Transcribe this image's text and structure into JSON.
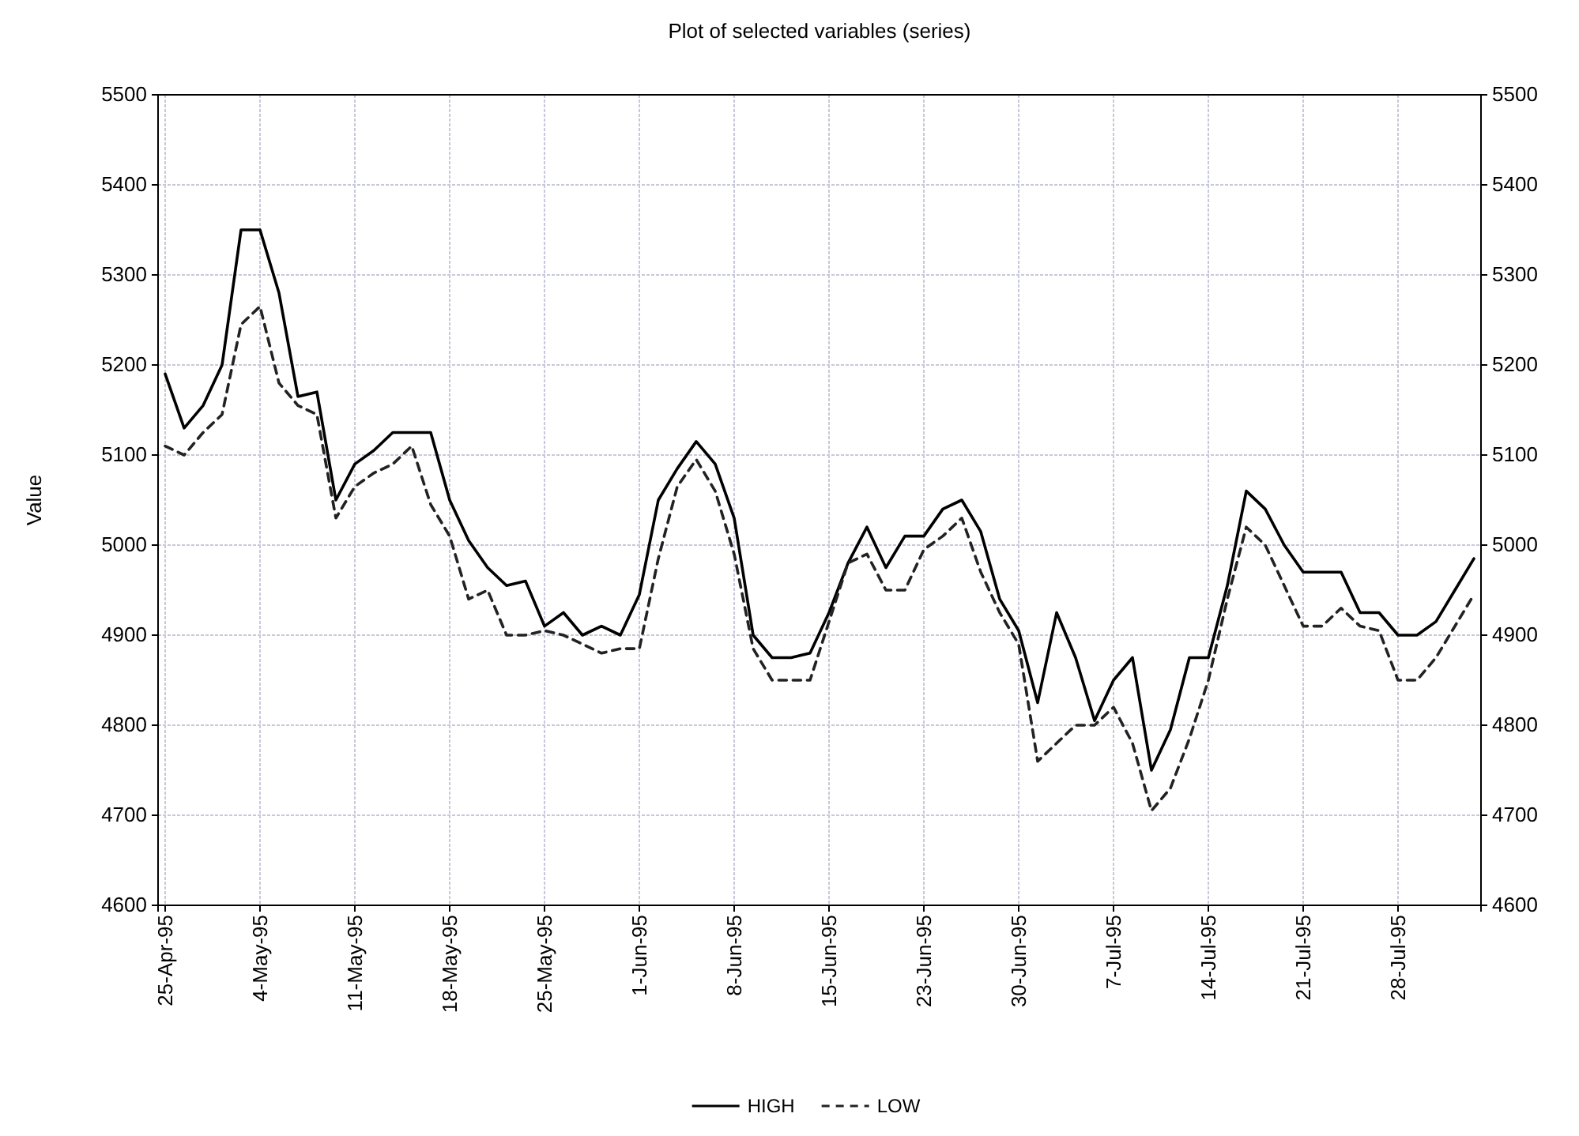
{
  "chart_data": {
    "type": "line",
    "title": "Plot of selected variables (series)",
    "ylabel": "Value",
    "categories": [
      "25-Apr-95",
      null,
      null,
      null,
      null,
      "4-May-95",
      null,
      null,
      null,
      null,
      "11-May-95",
      null,
      null,
      null,
      null,
      "18-May-95",
      null,
      null,
      null,
      null,
      "25-May-95",
      null,
      null,
      null,
      null,
      "1-Jun-95",
      null,
      null,
      null,
      null,
      "8-Jun-95",
      null,
      null,
      null,
      null,
      "15-Jun-95",
      null,
      null,
      null,
      null,
      "23-Jun-95",
      null,
      null,
      null,
      null,
      "30-Jun-95",
      null,
      null,
      null,
      null,
      "7-Jul-95",
      null,
      null,
      null,
      null,
      "14-Jul-95",
      null,
      null,
      null,
      null,
      "21-Jul-95",
      null,
      null,
      null,
      null,
      "28-Jul-95",
      null,
      null,
      null,
      null
    ],
    "series": [
      {
        "name": "HIGH",
        "color": "#000000",
        "line_style": "solid",
        "values": [
          5190,
          5130,
          5155,
          5200,
          5350,
          5350,
          5280,
          5165,
          5170,
          5050,
          5090,
          5105,
          5125,
          5125,
          5125,
          5050,
          5005,
          4975,
          4955,
          4960,
          4910,
          4925,
          4900,
          4910,
          4900,
          4945,
          5050,
          5085,
          5115,
          5090,
          5030,
          4900,
          4875,
          4875,
          4880,
          4925,
          4980,
          5020,
          4975,
          5010,
          5010,
          5040,
          5050,
          5015,
          4940,
          4905,
          4825,
          4925,
          4875,
          4805,
          4850,
          4875,
          4750,
          4795,
          4875,
          4875,
          4955,
          5060,
          5040,
          5000,
          4970,
          4970,
          4970,
          4925,
          4925,
          4900,
          4900,
          4915,
          4950,
          4985
        ]
      },
      {
        "name": "LOW",
        "color": "#222222",
        "line_style": "dashed",
        "values": [
          5110,
          5100,
          5125,
          5145,
          5245,
          5265,
          5180,
          5155,
          5145,
          5030,
          5065,
          5080,
          5090,
          5110,
          5045,
          5010,
          4940,
          4950,
          4900,
          4900,
          4905,
          4900,
          4890,
          4880,
          4885,
          4885,
          4985,
          5065,
          5095,
          5060,
          4990,
          4885,
          4850,
          4850,
          4850,
          4915,
          4980,
          4990,
          4950,
          4950,
          4995,
          5010,
          5030,
          4970,
          4925,
          4890,
          4760,
          4780,
          4800,
          4800,
          4820,
          4780,
          4705,
          4730,
          4785,
          4850,
          4940,
          5020,
          5000,
          4955,
          4910,
          4910,
          4930,
          4910,
          4905,
          4850,
          4850,
          4875,
          4910,
          4945
        ]
      }
    ],
    "ylim": [
      4600,
      5500
    ],
    "yticks": [
      4600,
      4700,
      4800,
      4900,
      5000,
      5100,
      5200,
      5300,
      5400,
      5500
    ],
    "y2lim": [
      4600,
      5500
    ],
    "y2ticks": [
      4600,
      4700,
      4800,
      4900,
      5000,
      5100,
      5200,
      5300,
      5400,
      5500
    ],
    "grid": true,
    "legend": "bottom",
    "marker": "none"
  }
}
